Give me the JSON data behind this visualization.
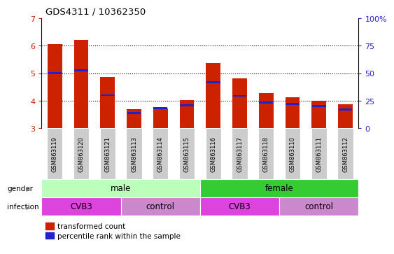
{
  "title": "GDS4311 / 10362350",
  "samples": [
    "GSM863119",
    "GSM863120",
    "GSM863121",
    "GSM863113",
    "GSM863114",
    "GSM863115",
    "GSM863116",
    "GSM863117",
    "GSM863118",
    "GSM863110",
    "GSM863111",
    "GSM863112"
  ],
  "transformed_count": [
    6.07,
    6.22,
    4.85,
    3.7,
    3.72,
    4.03,
    5.37,
    4.82,
    4.28,
    4.12,
    4.0,
    3.87
  ],
  "percentile_rank_left": [
    5.0,
    5.1,
    4.2,
    3.55,
    3.73,
    3.82,
    4.67,
    4.17,
    3.93,
    3.88,
    3.8,
    3.68
  ],
  "ylim_left": [
    3,
    7
  ],
  "ylim_right": [
    0,
    100
  ],
  "yticks_left": [
    3,
    4,
    5,
    6,
    7
  ],
  "yticks_right": [
    0,
    25,
    50,
    75,
    100
  ],
  "bar_color_red": "#cc2200",
  "bar_color_blue": "#2222cc",
  "bar_width": 0.55,
  "gender_male_color": "#bbffbb",
  "gender_female_color": "#33cc33",
  "infection_cvb3_color": "#dd44dd",
  "infection_control_color": "#cc88cc",
  "tick_label_color_left": "#cc2200",
  "tick_label_color_right": "#2222cc",
  "sample_box_color": "#cccccc",
  "background_color": "#ffffff",
  "grid_dotted_at": [
    4,
    5,
    6
  ]
}
